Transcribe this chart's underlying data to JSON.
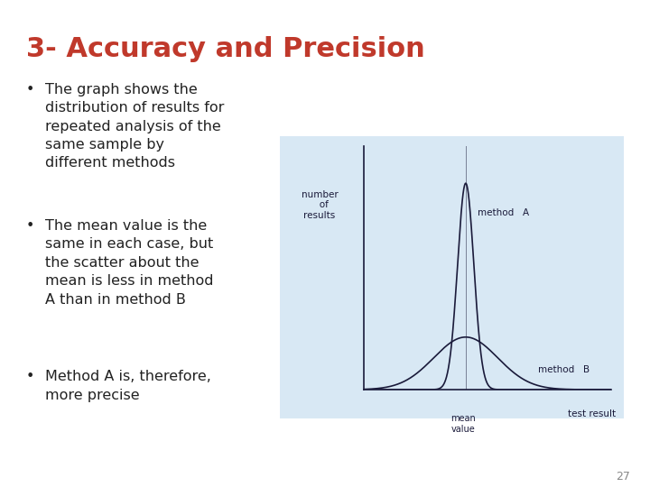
{
  "title": "3- Accuracy and Precision",
  "title_color": "#c0392b",
  "title_fontsize": 22,
  "header_bar_color": "#2278b5",
  "footer_bar_color": "#2278b5",
  "bg_color": "#ffffff",
  "bullet_points": [
    "The graph shows the\ndistribution of results for\nrepeated analysis of the\nsame sample by\ndifferent methods",
    "The mean value is the\nsame in each case, but\nthe scatter about the\nmean is less in method\nA than in method B",
    "Method A is, therefore,\nmore precise"
  ],
  "bullet_color": "#222222",
  "bullet_fontsize": 11.5,
  "chart_bg": "#d8e8f4",
  "chart_line_color": "#1a1a3a",
  "mean": 0.0,
  "sigma_A": 0.28,
  "sigma_B": 1.1,
  "ylabel": "number\n   of\nresults",
  "xlabel": "test result",
  "mean_label": "mean\nvalue",
  "method_A_label": "method   A",
  "method_B_label": "method   B",
  "page_number": "27",
  "page_number_color": "#888888"
}
